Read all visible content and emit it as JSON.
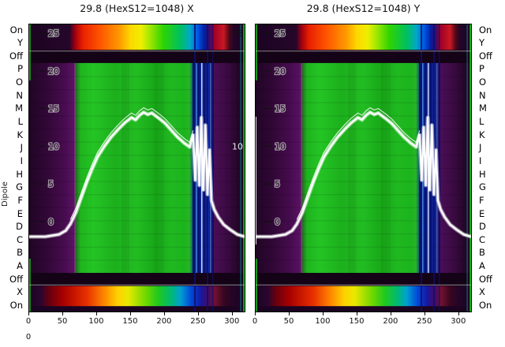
{
  "figure": {
    "left_axis_label": "Dipole",
    "extra_tick_label": "0"
  },
  "chart_data": {
    "type": "heatmap",
    "panels": [
      {
        "axis": "X",
        "title": "29.8 (HexS12=1048) X"
      },
      {
        "axis": "Y",
        "title": "29.8 (HexS12=1048) Y"
      }
    ],
    "row_axis_title": "Dipole",
    "row_labels": [
      "On",
      "Y",
      "Off",
      "P",
      "O",
      "N",
      "M",
      "L",
      "K",
      "J",
      "I",
      "H",
      "G",
      "F",
      "E",
      "D",
      "C",
      "B",
      "A",
      "Off",
      "X",
      "On"
    ],
    "x_range": [
      0,
      320
    ],
    "x_ticks": [
      0,
      50,
      100,
      150,
      200,
      250,
      300
    ],
    "overlay_value_ticks": [
      25,
      20,
      15,
      10,
      5,
      0
    ],
    "right_edge_value_ticks": [
      25,
      10
    ],
    "overlay_line": {
      "color": "#ffffff",
      "points": [
        [
          0,
          -2
        ],
        [
          25,
          -2
        ],
        [
          45,
          -1.7
        ],
        [
          55,
          -1.2
        ],
        [
          62,
          -0.3
        ],
        [
          70,
          1.2
        ],
        [
          78,
          3.2
        ],
        [
          86,
          5.2
        ],
        [
          94,
          7
        ],
        [
          102,
          8.6
        ],
        [
          112,
          10
        ],
        [
          122,
          11.2
        ],
        [
          132,
          12.2
        ],
        [
          142,
          13.1
        ],
        [
          152,
          13.8
        ],
        [
          158,
          13.5
        ],
        [
          164,
          14.1
        ],
        [
          170,
          14.5
        ],
        [
          176,
          14.2
        ],
        [
          182,
          14.4
        ],
        [
          188,
          14
        ],
        [
          194,
          13.6
        ],
        [
          202,
          13
        ],
        [
          210,
          12.2
        ],
        [
          220,
          11.2
        ],
        [
          230,
          10.4
        ],
        [
          238,
          9.9
        ],
        [
          243,
          11.5
        ],
        [
          246,
          5.5
        ],
        [
          249,
          12.5
        ],
        [
          252,
          4.8
        ],
        [
          255,
          13.8
        ],
        [
          258,
          4.2
        ],
        [
          261,
          12.8
        ],
        [
          264,
          3.6
        ],
        [
          267,
          9.5
        ],
        [
          270,
          2.8
        ],
        [
          274,
          1.6
        ],
        [
          280,
          0.6
        ],
        [
          288,
          -0.4
        ],
        [
          298,
          -1.1
        ],
        [
          308,
          -1.7
        ],
        [
          319,
          -2
        ]
      ]
    },
    "colormap": {
      "background": "#1b0421",
      "off_band": "#140216",
      "stripe_navy": "#081070",
      "edge_green": "#12d412",
      "top_band": [
        [
          0,
          "#1b0421"
        ],
        [
          0.19,
          "#26062b"
        ],
        [
          0.215,
          "#a00010"
        ],
        [
          0.25,
          "#e82000"
        ],
        [
          0.33,
          "#ff5500"
        ],
        [
          0.42,
          "#ff9900"
        ],
        [
          0.47,
          "#ffd700"
        ],
        [
          0.52,
          "#eeee00"
        ],
        [
          0.56,
          "#a0e800"
        ],
        [
          0.62,
          "#2fd400"
        ],
        [
          0.7,
          "#00c060"
        ],
        [
          0.745,
          "#00a8c8"
        ],
        [
          0.78,
          "#0058e8"
        ],
        [
          0.81,
          "#0020a0"
        ],
        [
          0.835,
          "#400868"
        ],
        [
          0.855,
          "#a00028"
        ],
        [
          0.9,
          "#c81822"
        ],
        [
          0.925,
          "#500718"
        ],
        [
          0.945,
          "#230528"
        ],
        [
          1,
          "#1b0421"
        ]
      ],
      "main_band": [
        [
          0,
          "#200524"
        ],
        [
          0.09,
          "#320838"
        ],
        [
          0.17,
          "#480c50"
        ],
        [
          0.21,
          "#5c1264"
        ],
        [
          0.222,
          "#20781e"
        ],
        [
          0.24,
          "#1eb41e"
        ],
        [
          0.3,
          "#24c424"
        ],
        [
          0.4,
          "#1cb01c"
        ],
        [
          0.5,
          "#22bc22"
        ],
        [
          0.58,
          "#18a818"
        ],
        [
          0.66,
          "#20b820"
        ],
        [
          0.72,
          "#1cb41c"
        ],
        [
          0.742,
          "#28b428"
        ],
        [
          0.755,
          "#107060"
        ],
        [
          0.77,
          "#0c2890"
        ],
        [
          0.8,
          "#102ca0"
        ],
        [
          0.83,
          "#101880"
        ],
        [
          0.858,
          "#4a0e54"
        ],
        [
          0.92,
          "#380a40"
        ],
        [
          0.965,
          "#250628"
        ],
        [
          1,
          "#1d0421"
        ]
      ],
      "bottom_band": [
        [
          0,
          "#1b0421"
        ],
        [
          0.06,
          "#2b0630"
        ],
        [
          0.09,
          "#600010"
        ],
        [
          0.16,
          "#a80000"
        ],
        [
          0.27,
          "#e83000"
        ],
        [
          0.35,
          "#ff8800"
        ],
        [
          0.41,
          "#ffd000"
        ],
        [
          0.46,
          "#e8e800"
        ],
        [
          0.54,
          "#70d800"
        ],
        [
          0.6,
          "#1fc81f"
        ],
        [
          0.66,
          "#00b878"
        ],
        [
          0.7,
          "#00a0d0"
        ],
        [
          0.75,
          "#0048d8"
        ],
        [
          0.795,
          "#1818a0"
        ],
        [
          0.83,
          "#480a60"
        ],
        [
          0.86,
          "#701030"
        ],
        [
          0.9,
          "#380720"
        ],
        [
          0.94,
          "#230528"
        ],
        [
          1,
          "#1b0421"
        ]
      ]
    }
  }
}
